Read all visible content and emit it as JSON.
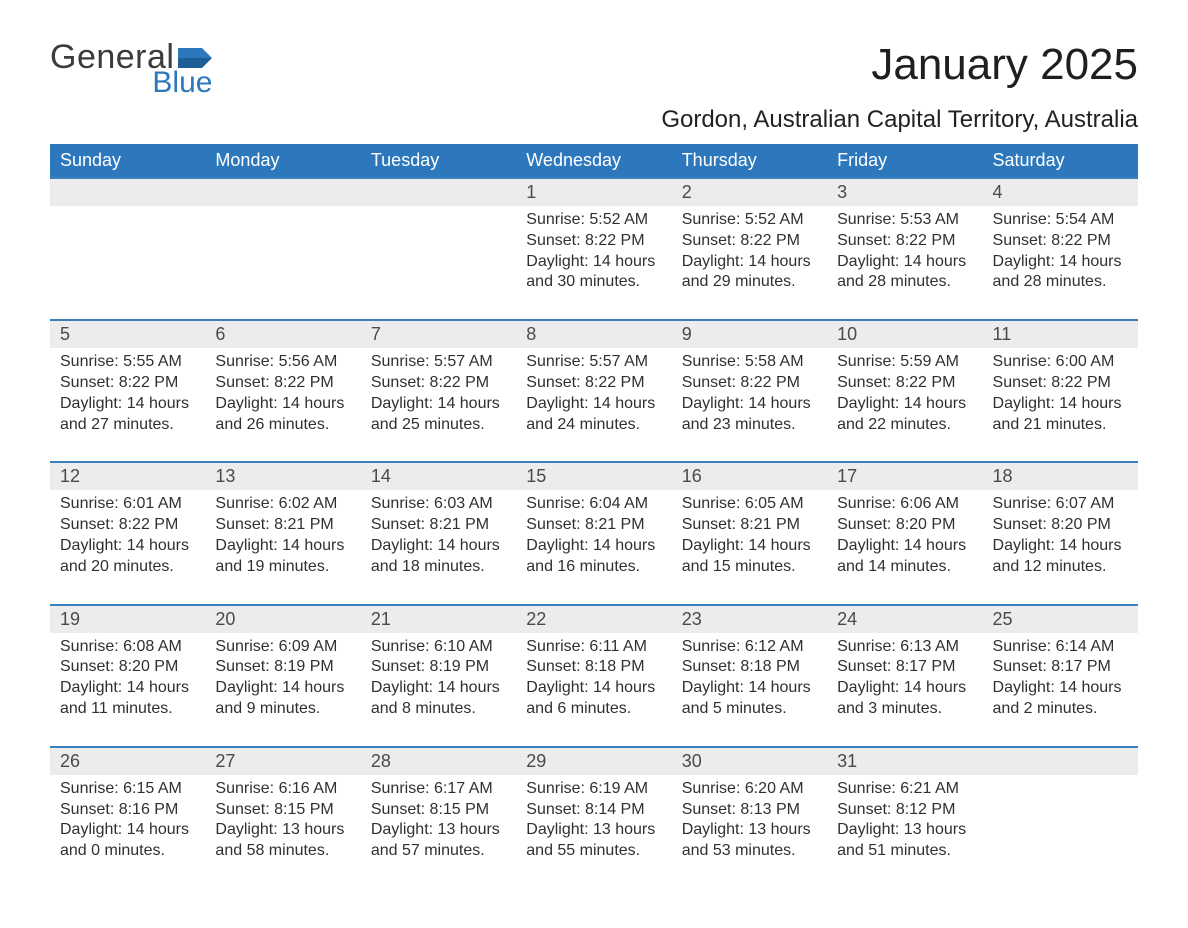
{
  "brand": {
    "word1": "General",
    "word2": "Blue"
  },
  "title": "January 2025",
  "location": "Gordon, Australian Capital Territory, Australia",
  "colors": {
    "accent": "#2d78bd",
    "header_row_bg": "#ececec",
    "rule": "#3a7fbe",
    "text": "#333333",
    "background": "#ffffff"
  },
  "typography": {
    "title_fontsize_pt": 33,
    "location_fontsize_pt": 18,
    "dayheader_fontsize_pt": 14,
    "daynum_fontsize_pt": 14,
    "body_fontsize_pt": 12,
    "font_family": "Arial"
  },
  "layout": {
    "columns": 7,
    "rows": 5,
    "week_start": "Sunday"
  },
  "day_headers": [
    "Sunday",
    "Monday",
    "Tuesday",
    "Wednesday",
    "Thursday",
    "Friday",
    "Saturday"
  ],
  "weeks": [
    [
      null,
      null,
      null,
      {
        "n": "1",
        "sunrise": "Sunrise: 5:52 AM",
        "sunset": "Sunset: 8:22 PM",
        "d1": "Daylight: 14 hours",
        "d2": "and 30 minutes."
      },
      {
        "n": "2",
        "sunrise": "Sunrise: 5:52 AM",
        "sunset": "Sunset: 8:22 PM",
        "d1": "Daylight: 14 hours",
        "d2": "and 29 minutes."
      },
      {
        "n": "3",
        "sunrise": "Sunrise: 5:53 AM",
        "sunset": "Sunset: 8:22 PM",
        "d1": "Daylight: 14 hours",
        "d2": "and 28 minutes."
      },
      {
        "n": "4",
        "sunrise": "Sunrise: 5:54 AM",
        "sunset": "Sunset: 8:22 PM",
        "d1": "Daylight: 14 hours",
        "d2": "and 28 minutes."
      }
    ],
    [
      {
        "n": "5",
        "sunrise": "Sunrise: 5:55 AM",
        "sunset": "Sunset: 8:22 PM",
        "d1": "Daylight: 14 hours",
        "d2": "and 27 minutes."
      },
      {
        "n": "6",
        "sunrise": "Sunrise: 5:56 AM",
        "sunset": "Sunset: 8:22 PM",
        "d1": "Daylight: 14 hours",
        "d2": "and 26 minutes."
      },
      {
        "n": "7",
        "sunrise": "Sunrise: 5:57 AM",
        "sunset": "Sunset: 8:22 PM",
        "d1": "Daylight: 14 hours",
        "d2": "and 25 minutes."
      },
      {
        "n": "8",
        "sunrise": "Sunrise: 5:57 AM",
        "sunset": "Sunset: 8:22 PM",
        "d1": "Daylight: 14 hours",
        "d2": "and 24 minutes."
      },
      {
        "n": "9",
        "sunrise": "Sunrise: 5:58 AM",
        "sunset": "Sunset: 8:22 PM",
        "d1": "Daylight: 14 hours",
        "d2": "and 23 minutes."
      },
      {
        "n": "10",
        "sunrise": "Sunrise: 5:59 AM",
        "sunset": "Sunset: 8:22 PM",
        "d1": "Daylight: 14 hours",
        "d2": "and 22 minutes."
      },
      {
        "n": "11",
        "sunrise": "Sunrise: 6:00 AM",
        "sunset": "Sunset: 8:22 PM",
        "d1": "Daylight: 14 hours",
        "d2": "and 21 minutes."
      }
    ],
    [
      {
        "n": "12",
        "sunrise": "Sunrise: 6:01 AM",
        "sunset": "Sunset: 8:22 PM",
        "d1": "Daylight: 14 hours",
        "d2": "and 20 minutes."
      },
      {
        "n": "13",
        "sunrise": "Sunrise: 6:02 AM",
        "sunset": "Sunset: 8:21 PM",
        "d1": "Daylight: 14 hours",
        "d2": "and 19 minutes."
      },
      {
        "n": "14",
        "sunrise": "Sunrise: 6:03 AM",
        "sunset": "Sunset: 8:21 PM",
        "d1": "Daylight: 14 hours",
        "d2": "and 18 minutes."
      },
      {
        "n": "15",
        "sunrise": "Sunrise: 6:04 AM",
        "sunset": "Sunset: 8:21 PM",
        "d1": "Daylight: 14 hours",
        "d2": "and 16 minutes."
      },
      {
        "n": "16",
        "sunrise": "Sunrise: 6:05 AM",
        "sunset": "Sunset: 8:21 PM",
        "d1": "Daylight: 14 hours",
        "d2": "and 15 minutes."
      },
      {
        "n": "17",
        "sunrise": "Sunrise: 6:06 AM",
        "sunset": "Sunset: 8:20 PM",
        "d1": "Daylight: 14 hours",
        "d2": "and 14 minutes."
      },
      {
        "n": "18",
        "sunrise": "Sunrise: 6:07 AM",
        "sunset": "Sunset: 8:20 PM",
        "d1": "Daylight: 14 hours",
        "d2": "and 12 minutes."
      }
    ],
    [
      {
        "n": "19",
        "sunrise": "Sunrise: 6:08 AM",
        "sunset": "Sunset: 8:20 PM",
        "d1": "Daylight: 14 hours",
        "d2": "and 11 minutes."
      },
      {
        "n": "20",
        "sunrise": "Sunrise: 6:09 AM",
        "sunset": "Sunset: 8:19 PM",
        "d1": "Daylight: 14 hours",
        "d2": "and 9 minutes."
      },
      {
        "n": "21",
        "sunrise": "Sunrise: 6:10 AM",
        "sunset": "Sunset: 8:19 PM",
        "d1": "Daylight: 14 hours",
        "d2": "and 8 minutes."
      },
      {
        "n": "22",
        "sunrise": "Sunrise: 6:11 AM",
        "sunset": "Sunset: 8:18 PM",
        "d1": "Daylight: 14 hours",
        "d2": "and 6 minutes."
      },
      {
        "n": "23",
        "sunrise": "Sunrise: 6:12 AM",
        "sunset": "Sunset: 8:18 PM",
        "d1": "Daylight: 14 hours",
        "d2": "and 5 minutes."
      },
      {
        "n": "24",
        "sunrise": "Sunrise: 6:13 AM",
        "sunset": "Sunset: 8:17 PM",
        "d1": "Daylight: 14 hours",
        "d2": "and 3 minutes."
      },
      {
        "n": "25",
        "sunrise": "Sunrise: 6:14 AM",
        "sunset": "Sunset: 8:17 PM",
        "d1": "Daylight: 14 hours",
        "d2": "and 2 minutes."
      }
    ],
    [
      {
        "n": "26",
        "sunrise": "Sunrise: 6:15 AM",
        "sunset": "Sunset: 8:16 PM",
        "d1": "Daylight: 14 hours",
        "d2": "and 0 minutes."
      },
      {
        "n": "27",
        "sunrise": "Sunrise: 6:16 AM",
        "sunset": "Sunset: 8:15 PM",
        "d1": "Daylight: 13 hours",
        "d2": "and 58 minutes."
      },
      {
        "n": "28",
        "sunrise": "Sunrise: 6:17 AM",
        "sunset": "Sunset: 8:15 PM",
        "d1": "Daylight: 13 hours",
        "d2": "and 57 minutes."
      },
      {
        "n": "29",
        "sunrise": "Sunrise: 6:19 AM",
        "sunset": "Sunset: 8:14 PM",
        "d1": "Daylight: 13 hours",
        "d2": "and 55 minutes."
      },
      {
        "n": "30",
        "sunrise": "Sunrise: 6:20 AM",
        "sunset": "Sunset: 8:13 PM",
        "d1": "Daylight: 13 hours",
        "d2": "and 53 minutes."
      },
      {
        "n": "31",
        "sunrise": "Sunrise: 6:21 AM",
        "sunset": "Sunset: 8:12 PM",
        "d1": "Daylight: 13 hours",
        "d2": "and 51 minutes."
      },
      null
    ]
  ]
}
